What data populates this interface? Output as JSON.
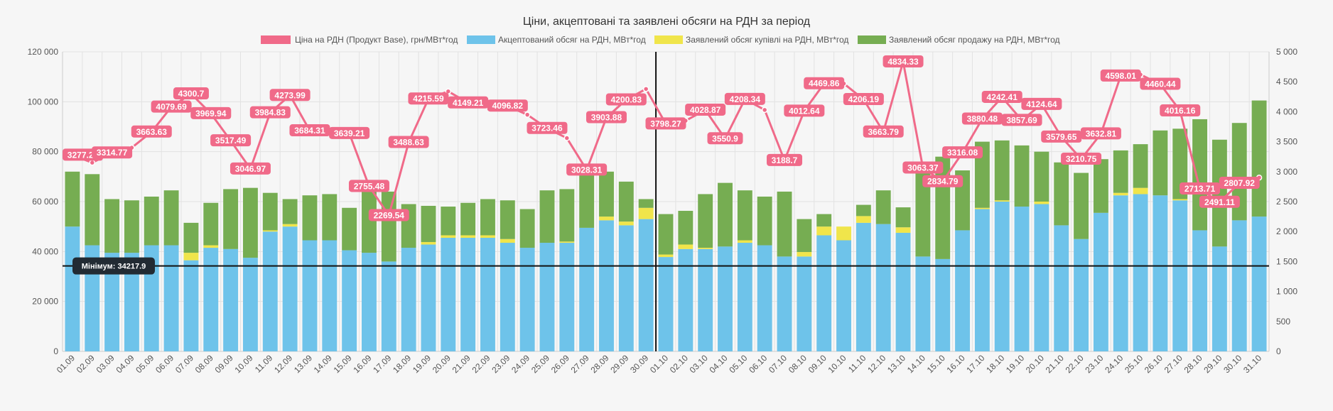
{
  "chart_data": {
    "type": "bar",
    "title": "Ціни, акцептовані та заявлені обсяги на РДН за період",
    "legend": [
      {
        "key": "price",
        "label": "Ціна на РДН (Продукт Base), грн/МВт*год",
        "color": "#f06a89"
      },
      {
        "key": "accepted",
        "label": "Акцептований обсяг на РДН, МВт*год",
        "color": "#6ec3ea"
      },
      {
        "key": "buy",
        "label": "Заявлений обсяг купівлі на РДН, МВт*год",
        "color": "#f0e54b"
      },
      {
        "key": "sell",
        "label": "Заявлений обсяг продажу на РДН, МВт*год",
        "color": "#76ad52"
      }
    ],
    "y_left": {
      "min": 0,
      "max": 120000,
      "ticks": [
        "0",
        "20 000",
        "40 000",
        "60 000",
        "80 000",
        "100 000",
        "120 000"
      ]
    },
    "y_right": {
      "min": 0,
      "max": 5000,
      "ticks": [
        "0",
        "500",
        "1 000",
        "1 500",
        "2 000",
        "2 500",
        "3 000",
        "3 500",
        "4 000",
        "4 500",
        "5 000"
      ]
    },
    "stacked": true,
    "grid": true,
    "legend_position": "top",
    "categories": [
      "01.09",
      "02.09",
      "03.09",
      "04.09",
      "05.09",
      "06.09",
      "07.09",
      "08.09",
      "09.09",
      "10.09",
      "11.09",
      "12.09",
      "13.09",
      "14.09",
      "15.09",
      "16.09",
      "17.09",
      "18.09",
      "19.09",
      "20.09",
      "21.09",
      "22.09",
      "23.09",
      "24.09",
      "25.09",
      "26.09",
      "27.09",
      "28.09",
      "29.09",
      "30.09",
      "01.10",
      "02.10",
      "03.10",
      "04.10",
      "05.10",
      "06.10",
      "07.10",
      "08.10",
      "09.10",
      "10.10",
      "11.10",
      "12.10",
      "13.10",
      "14.10",
      "15.10",
      "16.10",
      "17.10",
      "18.10",
      "19.10",
      "20.10",
      "21.10",
      "22.10",
      "23.10",
      "24.10",
      "25.10",
      "26.10",
      "27.10",
      "28.10",
      "29.10",
      "30.10",
      "31.10"
    ],
    "series": [
      {
        "name": "Акцептований обсяг на РДН, МВт*год",
        "key": "accepted",
        "values": [
          50000,
          42500,
          39500,
          39500,
          42500,
          42500,
          36500,
          41500,
          41000,
          37500,
          48000,
          50000,
          44500,
          44500,
          40500,
          39500,
          36000,
          41500,
          42800,
          45500,
          45500,
          45500,
          43500,
          41500,
          43500,
          43500,
          49500,
          52500,
          50500,
          53000,
          37800,
          41000,
          41000,
          42000,
          43500,
          42500,
          38000,
          38000,
          46500,
          44500,
          51500,
          51000,
          47500,
          38000,
          37000,
          48500,
          57000,
          60000,
          58000,
          59000,
          50500,
          45000,
          55500,
          62500,
          63000,
          62500,
          60500,
          48500,
          42000,
          52500,
          54000
        ]
      },
      {
        "name": "Заявлений обсяг купівлі на РДН, МВт*год",
        "key": "buy",
        "values": [
          0,
          0,
          0,
          0,
          0,
          0,
          3000,
          1000,
          0,
          0,
          500,
          1000,
          0,
          0,
          0,
          0,
          0,
          0,
          1000,
          1000,
          1000,
          1000,
          1500,
          0,
          0,
          500,
          0,
          1500,
          1500,
          4500,
          1000,
          1800,
          500,
          0,
          1000,
          0,
          0,
          1800,
          3500,
          5500,
          2700,
          0,
          2200,
          0,
          0,
          0,
          500,
          500,
          0,
          1000,
          0,
          0,
          0,
          1000,
          2500,
          0,
          500,
          0,
          0,
          0,
          0
        ]
      },
      {
        "name": "Заявлений обсяг продажу на РДН, МВт*год",
        "key": "sell",
        "values": [
          22000,
          28500,
          21500,
          21000,
          19500,
          22000,
          12000,
          17000,
          24000,
          28000,
          15000,
          10000,
          18000,
          18500,
          17000,
          27000,
          28000,
          17500,
          14500,
          11500,
          13000,
          14500,
          15500,
          15500,
          21000,
          21000,
          25000,
          18000,
          16000,
          3500,
          16200,
          13500,
          21500,
          25500,
          20000,
          19500,
          26000,
          13200,
          5000,
          0,
          4500,
          13500,
          8000,
          34500,
          41000,
          24000,
          26500,
          24000,
          24500,
          20000,
          25200,
          26500,
          21500,
          17000,
          17500,
          26000,
          28200,
          44500,
          42800,
          39000,
          46500
        ]
      },
      {
        "name": "Ціна на РДН (Продукт Base), грн/МВт*год",
        "key": "price",
        "axis": "right",
        "values": [
          3277.26,
          3150,
          3314.77,
          3400,
          3663.63,
          4079.69,
          4300.7,
          3969.94,
          3517.49,
          3046.97,
          3984.83,
          4273.99,
          3684.31,
          3700,
          3639.21,
          2755.48,
          2269.54,
          3488.63,
          4215.59,
          4340,
          4149.21,
          4170,
          4096.82,
          3950,
          3723.46,
          3560,
          3028.31,
          3903.88,
          4200.83,
          4380,
          3798.27,
          3850,
          4028.87,
          3550.9,
          4208.34,
          4030,
          3188.7,
          4012.64,
          4469.86,
          4470,
          4206.19,
          3663.79,
          4834.33,
          3063.37,
          2834.79,
          3316.08,
          3880.48,
          4242.41,
          3857.69,
          4124.64,
          3579.65,
          3210.75,
          3632.81,
          4598.01,
          4620,
          4460.44,
          4016.16,
          2713.71,
          2491.11,
          2807.92,
          2900
        ],
        "labels": [
          "3277.26",
          "",
          "3314.77",
          "",
          "3663.63",
          "4079.69",
          "4300.7",
          "3969.94",
          "3517.49",
          "3046.97",
          "3984.83",
          "4273.99",
          "3684.31",
          "",
          "3639.21",
          "2755.48",
          "2269.54",
          "3488.63",
          "4215.59",
          "",
          "4149.21",
          "",
          "4096.82",
          "",
          "3723.46",
          "",
          "3028.31",
          "3903.88",
          "4200.83",
          "",
          "3798.27",
          "",
          "4028.87",
          "3550.9",
          "4208.34",
          "",
          "3188.7",
          "4012.64",
          "4469.86",
          "",
          "4206.19",
          "3663.79",
          "4834.33",
          "3063.37",
          "2834.79",
          "3316.08",
          "3880.48",
          "4242.41",
          "3857.69",
          "4124.64",
          "3579.65",
          "3210.75",
          "3632.81",
          "4598.01",
          "",
          "4460.44",
          "4016.16",
          "2713.71",
          "2491.11",
          "2807.92",
          ""
        ]
      }
    ],
    "annotations": {
      "min_line": {
        "value": 34217.9,
        "label": "Мінімум: 34217.9"
      },
      "separator_after_category": "30.09"
    }
  }
}
